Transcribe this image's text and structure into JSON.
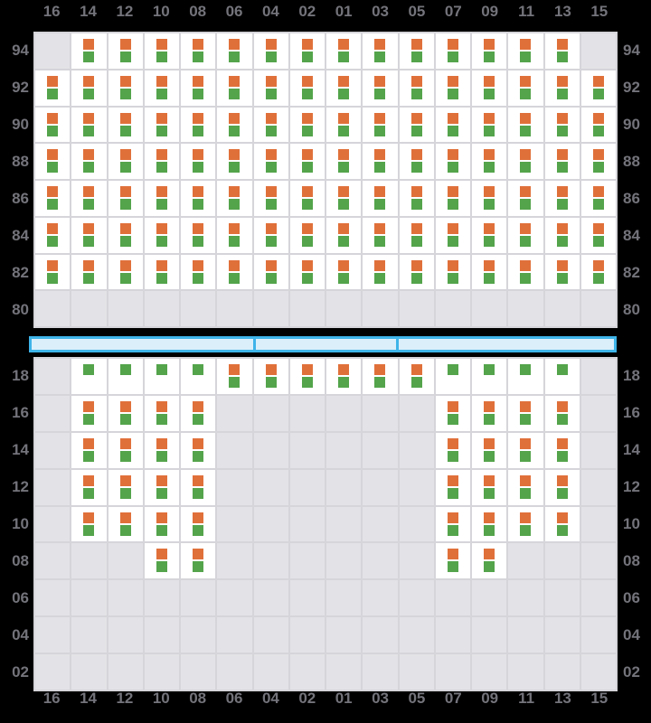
{
  "colors": {
    "background": "#000000",
    "slot_filled": "#ffffff",
    "slot_empty": "#e3e3e7",
    "grid_line": "#d5d5da",
    "orange_square": "#e0703a",
    "green_square": "#54a44b",
    "label_text": "#73737b",
    "hatch_bar_fill": "#dbeffb",
    "hatch_bar_border": "#3eb4e9"
  },
  "icons": {
    "orange_square": "orange-square-icon",
    "green_square": "green-square-icon"
  },
  "grid": {
    "columns": [
      "16",
      "14",
      "12",
      "10",
      "08",
      "06",
      "04",
      "02",
      "01",
      "03",
      "05",
      "07",
      "09",
      "11",
      "13",
      "15"
    ],
    "cell_legend": {
      "E": "empty",
      "B": "orange+green",
      "G": "green-only"
    },
    "deck": {
      "rows": [
        {
          "tier": "94",
          "cells": "EBBBBBBBBBBBBBBE"
        },
        {
          "tier": "92",
          "cells": "BBBBBBBBBBBBBBBB"
        },
        {
          "tier": "90",
          "cells": "BBBBBBBBBBBBBBBB"
        },
        {
          "tier": "88",
          "cells": "BBBBBBBBBBBBBBBB"
        },
        {
          "tier": "86",
          "cells": "BBBBBBBBBBBBBBBB"
        },
        {
          "tier": "84",
          "cells": "BBBBBBBBBBBBBBBB"
        },
        {
          "tier": "82",
          "cells": "BBBBBBBBBBBBBBBB"
        },
        {
          "tier": "80",
          "cells": "EEEEEEEEEEEEEEEE"
        }
      ]
    },
    "hold": {
      "rows": [
        {
          "tier": "18",
          "cells": "EGGGGBBBBBBGGGGE"
        },
        {
          "tier": "16",
          "cells": "EBBBBEEEEEEBBBBE"
        },
        {
          "tier": "14",
          "cells": "EBBBBEEEEEEBBBBE"
        },
        {
          "tier": "12",
          "cells": "EBBBBEEEEEEBBBBE"
        },
        {
          "tier": "10",
          "cells": "EBBBBEEEEEEBBBBE"
        },
        {
          "tier": "08",
          "cells": "EEEBBEEEEEEBBEEE"
        },
        {
          "tier": "06",
          "cells": "EEEEEEEEEEEEEEEE"
        },
        {
          "tier": "04",
          "cells": "EEEEEEEEEEEEEEEE"
        },
        {
          "tier": "02",
          "cells": "EEEEEEEEEEEEEEEE"
        }
      ]
    }
  },
  "separator": {
    "segment_count": 3,
    "divider_positions": [
      0.38,
      0.626
    ]
  }
}
